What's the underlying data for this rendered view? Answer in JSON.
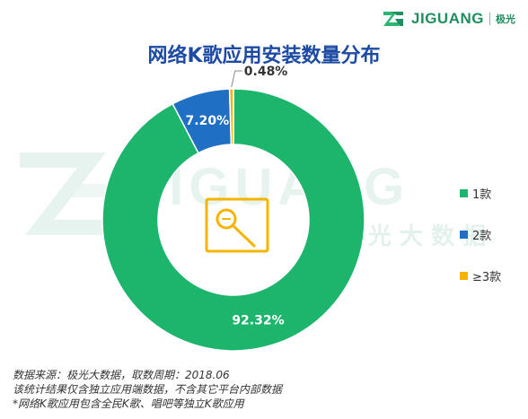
{
  "brand": {
    "name": "JIGUANG",
    "cn": "极光"
  },
  "watermark": {
    "text": "JIGUANG",
    "cn": "光 大 数 据"
  },
  "title": "网络K歌应用安装数量分布",
  "chart_data": {
    "type": "pie",
    "donut": true,
    "title": "网络K歌应用安装数量分布",
    "slices": [
      {
        "label": "1款",
        "value": 92.32,
        "display": "92.32%",
        "color": "#1db56c"
      },
      {
        "label": "2款",
        "value": 7.2,
        "display": "7.20%",
        "color": "#1f6fc5"
      },
      {
        "label": "≥3款",
        "value": 0.48,
        "display": "0.48%",
        "color": "#f5b400"
      }
    ],
    "legend_position": "right"
  },
  "center_icon": {
    "name": "microphone-icon",
    "color": "#f5b400"
  },
  "footnotes": [
    "数据来源：极光大数据，取数周期：2018.06",
    "该统计结果仅含独立应用端数据，不含其它平台内部数据",
    "*网络K歌应用包含全民K歌、唱吧等独立K歌应用"
  ]
}
